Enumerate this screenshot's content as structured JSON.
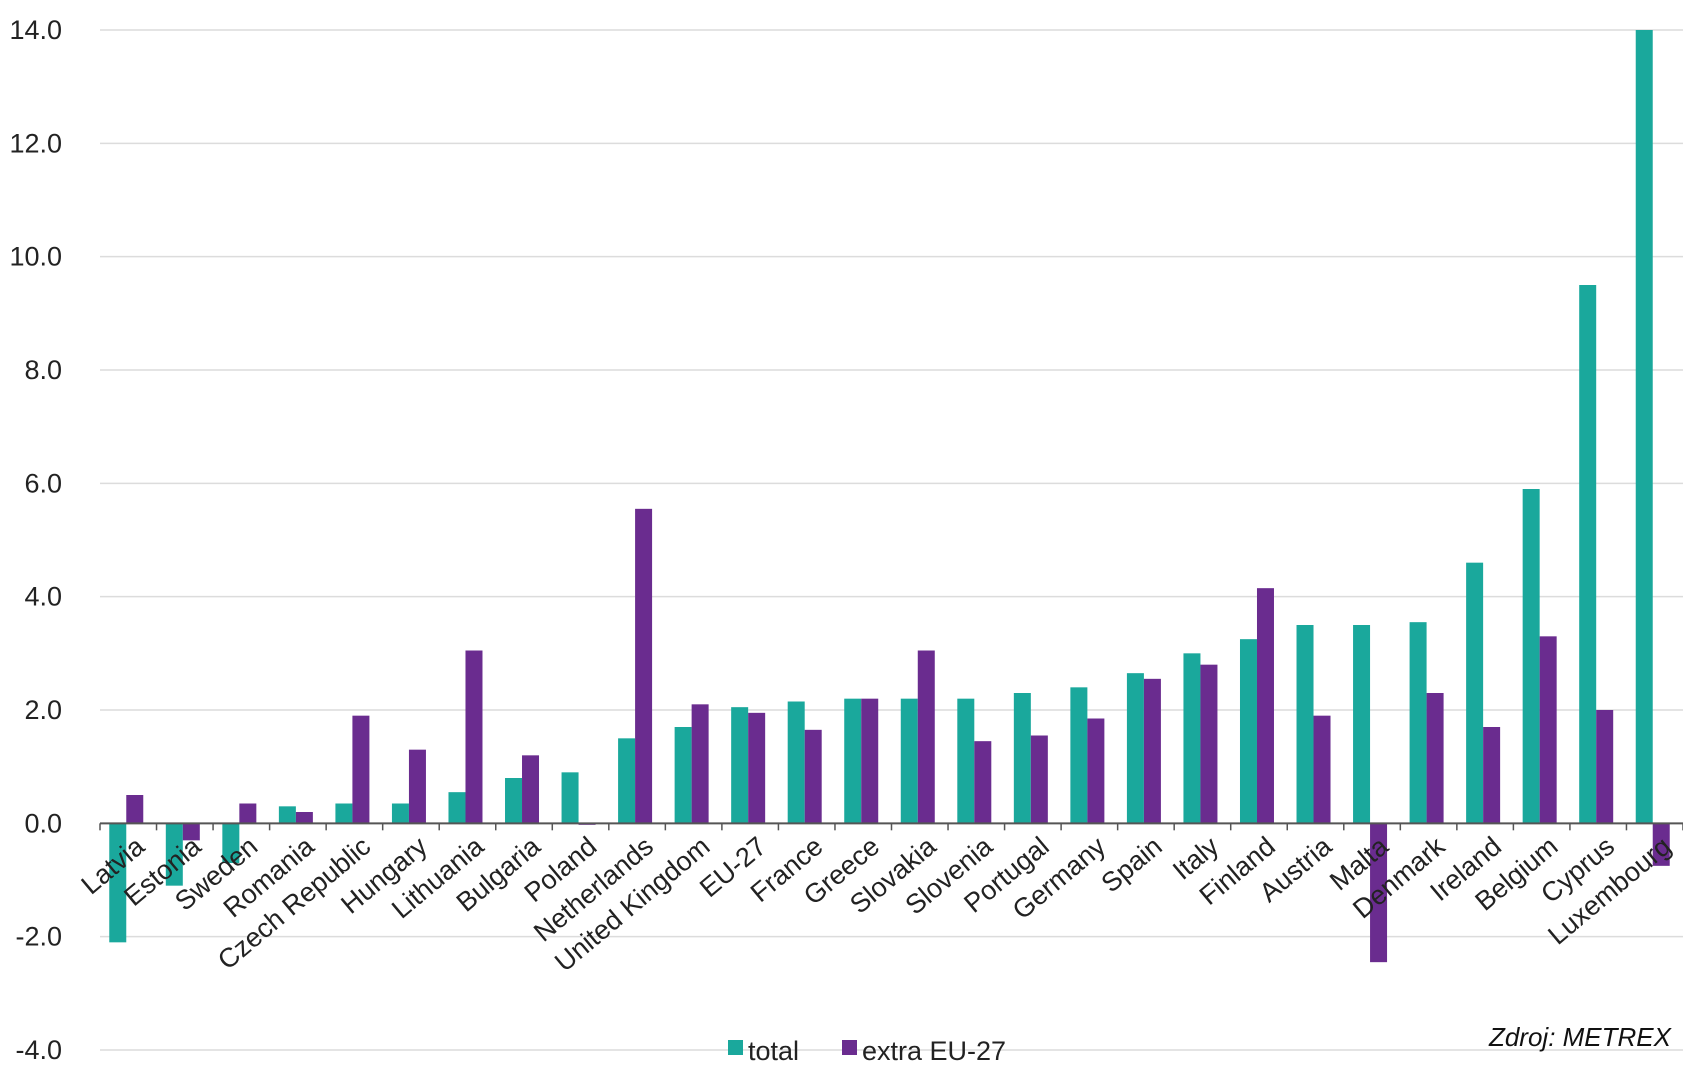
{
  "chart_data": {
    "type": "bar",
    "categories": [
      "Latvia",
      "Estonia",
      "Sweden",
      "Romania",
      "Czech Republic",
      "Hungary",
      "Lithuania",
      "Bulgaria",
      "Poland",
      "Netherlands",
      "United Kingdom",
      "EU-27",
      "France",
      "Greece",
      "Slovakia",
      "Slovenia",
      "Portugal",
      "Germany",
      "Spain",
      "Italy",
      "Finland",
      "Austria",
      "Malta",
      "Denmark",
      "Ireland",
      "Belgium",
      "Cyprus",
      "Luxembourg"
    ],
    "series": [
      {
        "name": "total",
        "color": "#1aa89c",
        "values": [
          -2.1,
          -1.1,
          -0.7,
          0.3,
          0.35,
          0.35,
          0.55,
          0.8,
          0.9,
          1.5,
          1.7,
          2.05,
          2.15,
          2.2,
          2.2,
          2.2,
          2.3,
          2.4,
          2.65,
          3.0,
          3.25,
          3.5,
          3.5,
          3.55,
          4.6,
          5.9,
          9.5,
          14.0
        ]
      },
      {
        "name": "extra EU-27",
        "color": "#6a2c8f",
        "values": [
          0.5,
          -0.3,
          0.35,
          0.2,
          1.9,
          1.3,
          3.05,
          1.2,
          -0.02,
          5.55,
          2.1,
          1.95,
          1.65,
          2.2,
          3.05,
          1.45,
          1.55,
          1.85,
          2.55,
          2.8,
          4.15,
          1.9,
          -2.45,
          2.3,
          1.7,
          3.3,
          2.0,
          -0.75
        ]
      }
    ],
    "ylim": [
      -4.0,
      14.0
    ],
    "yticks": [
      "14.0",
      "12.0",
      "10.0",
      "8.0",
      "6.0",
      "4.0",
      "2.0",
      "0.0",
      "-2.0",
      "-4.0"
    ],
    "grid": true,
    "legend": "bottom-center",
    "xlabel": "",
    "ylabel": "",
    "title": ""
  },
  "source_label": "Zdroj: METREX"
}
